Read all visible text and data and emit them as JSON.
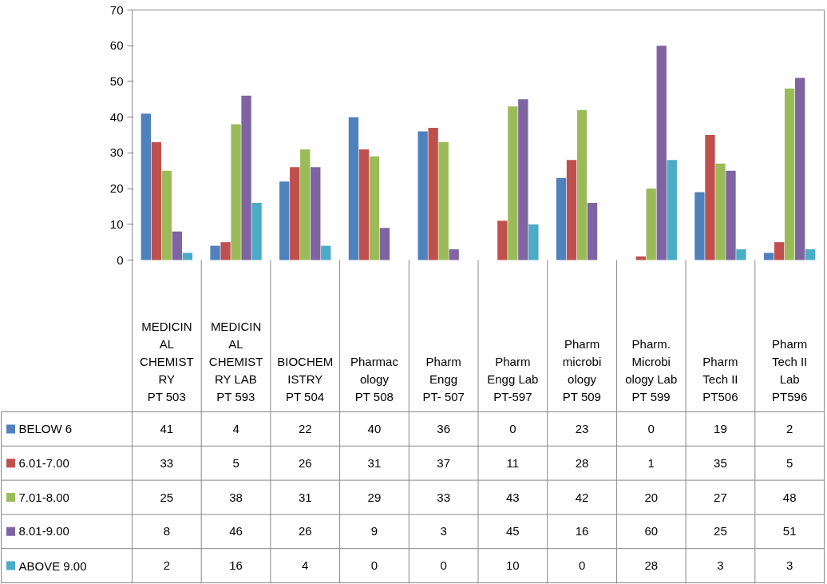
{
  "chart_data": {
    "type": "bar",
    "categories": [
      "MEDICINAL CHEMISTRY\nPT 503",
      "MEDICINAL CHEMISTRY LAB\nPT 593",
      "BIOCHEMISTRY\nPT 504",
      "Pharmacology\nPT 508",
      "Pharm Engg\nPT- 507",
      "Pharm Engg Lab\nPT-597",
      "Pharm microbiology\nPT 509",
      "Pharm. Microbiology Lab\nPT 599",
      "Pharm Tech II\nPT506",
      "Pharm Tech II Lab\nPT596"
    ],
    "series": [
      {
        "name": "BELOW 6",
        "color": "#4f81bd",
        "values": [
          41,
          4,
          22,
          40,
          36,
          0,
          23,
          0,
          19,
          2
        ]
      },
      {
        "name": "6.01-7.00",
        "color": "#c0504d",
        "values": [
          33,
          5,
          26,
          31,
          37,
          11,
          28,
          1,
          35,
          5
        ]
      },
      {
        "name": "7.01-8.00",
        "color": "#9bbb59",
        "values": [
          25,
          38,
          31,
          29,
          33,
          43,
          42,
          20,
          27,
          48
        ]
      },
      {
        "name": "8.01-9.00",
        "color": "#8064a2",
        "values": [
          8,
          46,
          26,
          9,
          3,
          45,
          16,
          60,
          25,
          51
        ]
      },
      {
        "name": "ABOVE 9.00",
        "color": "#4bacc6",
        "values": [
          2,
          16,
          4,
          0,
          0,
          10,
          0,
          28,
          3,
          3
        ]
      }
    ],
    "ylim": [
      0,
      70
    ],
    "yticks": [
      0,
      10,
      20,
      30,
      40,
      50,
      60,
      70
    ],
    "grid": false,
    "legend": "bottom",
    "data_labels": true
  }
}
